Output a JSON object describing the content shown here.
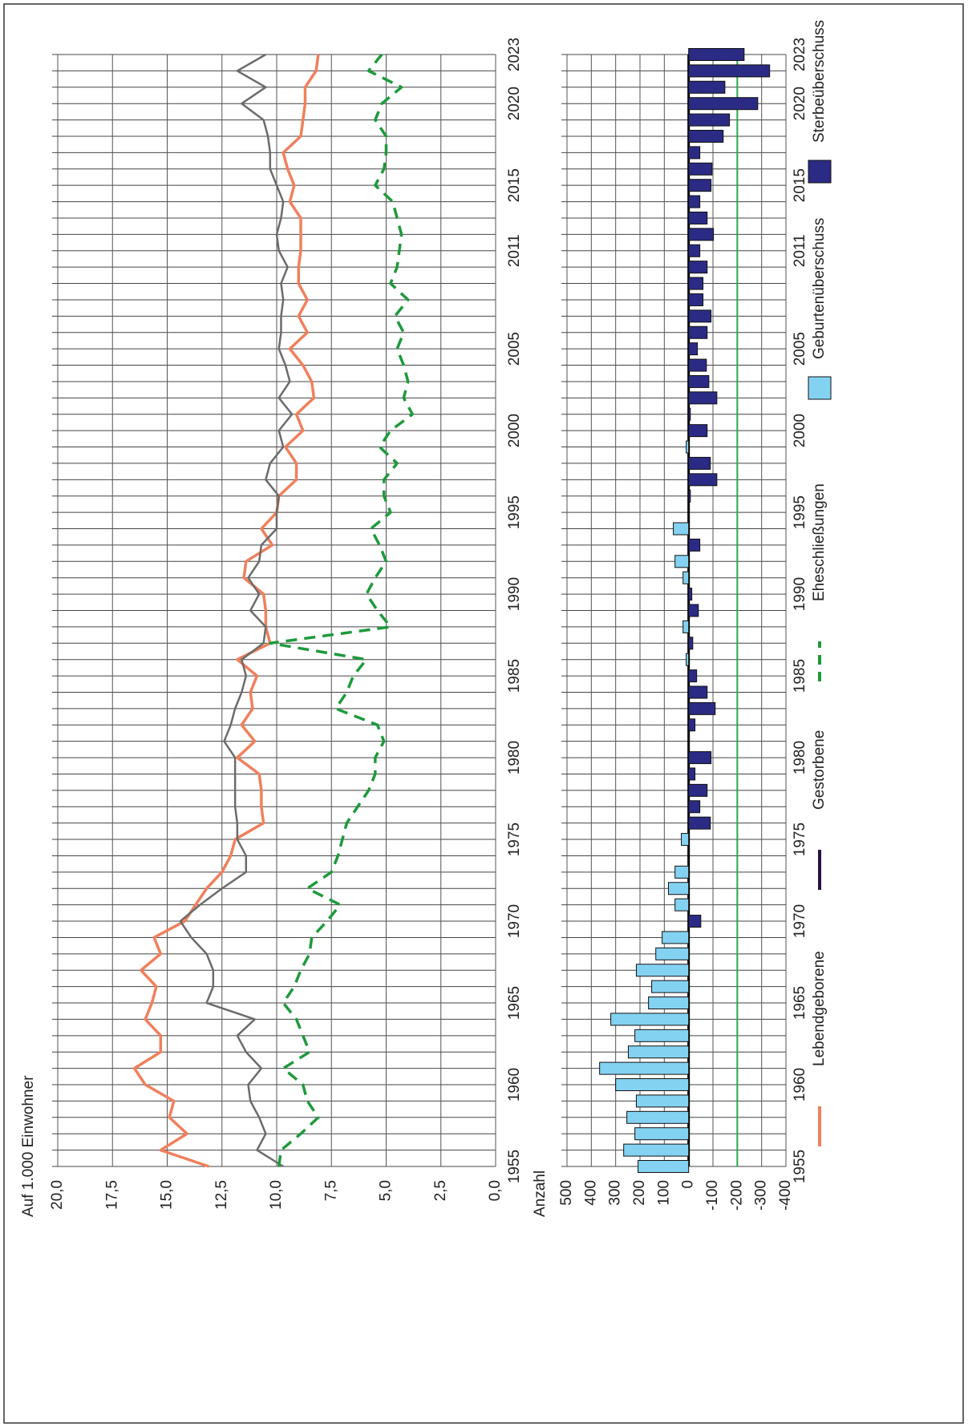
{
  "chart_data": [
    {
      "type": "line",
      "title": "Auf 1.000 Einwohner",
      "grid": true,
      "x": [
        1955,
        1956,
        1957,
        1958,
        1959,
        1960,
        1961,
        1962,
        1963,
        1964,
        1965,
        1966,
        1967,
        1968,
        1969,
        1970,
        1971,
        1972,
        1973,
        1974,
        1975,
        1976,
        1977,
        1978,
        1979,
        1980,
        1981,
        1982,
        1983,
        1984,
        1985,
        1986,
        1987,
        1988,
        1989,
        1990,
        1991,
        1992,
        1993,
        1994,
        1995,
        1996,
        1997,
        1998,
        1999,
        2000,
        2001,
        2002,
        2003,
        2004,
        2005,
        2006,
        2007,
        2008,
        2009,
        2010,
        2011,
        2012,
        2013,
        2014,
        2015,
        2016,
        2017,
        2018,
        2019,
        2020,
        2021,
        2022,
        2023
      ],
      "xlim": [
        1955,
        2023
      ],
      "xticks": [
        1955,
        1960,
        1965,
        1970,
        1975,
        1980,
        1985,
        1990,
        1995,
        2000,
        2005,
        2011,
        2015,
        2020,
        2023
      ],
      "ylim": [
        0,
        20
      ],
      "yticks": [
        {
          "value": 0,
          "label": "0,0"
        },
        {
          "value": 2.5,
          "label": "2,5"
        },
        {
          "value": 5,
          "label": "5,0"
        },
        {
          "value": 7.5,
          "label": "7,5"
        },
        {
          "value": 10,
          "label": "10,0"
        },
        {
          "value": 12.5,
          "label": "12,5"
        },
        {
          "value": 15,
          "label": "15,0"
        },
        {
          "value": 17.5,
          "label": "17,5"
        },
        {
          "value": 20,
          "label": "20,0"
        }
      ],
      "series": [
        {
          "name": "Lebendgeborene",
          "color": "#f0805c",
          "dash": false,
          "values": [
            13.1,
            15.3,
            14.1,
            14.9,
            14.7,
            16.0,
            16.5,
            15.3,
            15.3,
            16.0,
            15.7,
            15.5,
            16.2,
            15.3,
            15.6,
            14.2,
            13.7,
            13.2,
            12.5,
            12.1,
            11.9,
            10.6,
            10.7,
            10.7,
            10.8,
            11.8,
            11.0,
            11.6,
            11.1,
            11.2,
            10.9,
            11.8,
            10.3,
            10.5,
            10.5,
            10.6,
            11.5,
            11.4,
            10.2,
            10.7,
            10.0,
            9.9,
            9.1,
            9.1,
            9.6,
            8.8,
            9.1,
            8.3,
            8.4,
            8.8,
            9.4,
            8.6,
            9.0,
            8.6,
            9.0,
            9.0,
            8.9,
            8.9,
            8.9,
            9.4,
            9.2,
            9.5,
            9.7,
            8.9,
            8.8,
            8.7,
            8.7,
            8.2,
            8.1
          ]
        },
        {
          "name": "Gestorbene",
          "color": "#6b6b6b",
          "legend_color": "#2a1040",
          "dash": false,
          "values": [
            9.7,
            10.9,
            10.5,
            10.8,
            11.2,
            11.3,
            10.7,
            11.4,
            11.8,
            11.0,
            13.2,
            12.9,
            12.9,
            13.2,
            13.9,
            14.4,
            13.5,
            12.5,
            11.4,
            11.4,
            11.8,
            11.8,
            11.9,
            11.9,
            11.9,
            11.9,
            12.4,
            12.1,
            11.9,
            11.6,
            11.4,
            11.6,
            10.6,
            10.5,
            11.2,
            10.8,
            11.3,
            10.8,
            10.7,
            10.0,
            10.0,
            9.9,
            10.5,
            10.3,
            9.7,
            9.9,
            9.3,
            9.9,
            9.4,
            9.6,
            9.9,
            9.8,
            9.8,
            9.7,
            9.8,
            9.5,
            9.9,
            10.0,
            9.8,
            9.7,
            10.0,
            10.3,
            10.3,
            10.4,
            10.6,
            11.6,
            10.5,
            11.8,
            10.5
          ]
        },
        {
          "name": "Eheschließungen",
          "color": "#1e9a3c",
          "dash": true,
          "values": [
            9.9,
            9.8,
            8.9,
            8.1,
            8.6,
            8.8,
            9.7,
            8.5,
            8.8,
            9.1,
            9.7,
            9.2,
            8.9,
            8.5,
            8.4,
            7.7,
            7.1,
            8.6,
            7.5,
            7.2,
            7.0,
            6.8,
            6.3,
            5.8,
            5.5,
            5.5,
            5.1,
            5.4,
            7.3,
            6.8,
            6.5,
            5.9,
            10.3,
            4.8,
            5.4,
            5.9,
            5.5,
            5.0,
            5.3,
            5.7,
            4.8,
            5.1,
            5.1,
            4.5,
            5.3,
            4.8,
            3.8,
            4.2,
            4.0,
            4.2,
            4.5,
            4.2,
            4.6,
            4.0,
            4.8,
            4.5,
            4.4,
            4.3,
            4.5,
            4.7,
            5.5,
            5.1,
            5.0,
            5.0,
            5.5,
            5.2,
            4.3,
            5.8,
            5.2
          ]
        }
      ]
    },
    {
      "type": "bar",
      "ylabel": "Anzahl",
      "grid": true,
      "x": [
        1955,
        1956,
        1957,
        1958,
        1959,
        1960,
        1961,
        1962,
        1963,
        1964,
        1965,
        1966,
        1967,
        1968,
        1969,
        1970,
        1971,
        1972,
        1973,
        1974,
        1975,
        1976,
        1977,
        1978,
        1979,
        1980,
        1981,
        1982,
        1983,
        1984,
        1985,
        1986,
        1987,
        1988,
        1989,
        1990,
        1991,
        1992,
        1993,
        1994,
        1995,
        1996,
        1997,
        1998,
        1999,
        2000,
        2001,
        2002,
        2003,
        2004,
        2005,
        2006,
        2007,
        2008,
        2009,
        2010,
        2011,
        2012,
        2013,
        2014,
        2015,
        2016,
        2017,
        2018,
        2019,
        2020,
        2021,
        2022,
        2023
      ],
      "xlim": [
        1955,
        2023
      ],
      "xticks": [
        1955,
        1960,
        1965,
        1970,
        1975,
        1980,
        1985,
        1990,
        1995,
        2000,
        2005,
        2011,
        2015,
        2020,
        2023
      ],
      "ylim": [
        -400,
        500
      ],
      "yticks": [
        -400,
        -300,
        -200,
        -100,
        0,
        100,
        200,
        300,
        400,
        500
      ],
      "hline": {
        "value": -200,
        "color": "#2aa84a"
      },
      "series": [
        {
          "name": "Geburtenüberschuss",
          "color": "#84d2f2",
          "values": [
            208,
            267,
            221,
            254,
            215,
            300,
            366,
            248,
            221,
            320,
            165,
            152,
            215,
            135,
            109,
            null,
            56,
            83,
            56,
            3,
            30,
            null,
            null,
            null,
            null,
            null,
            null,
            null,
            null,
            null,
            null,
            10,
            null,
            23,
            null,
            null,
            23,
            56,
            null,
            63,
            null,
            null,
            null,
            null,
            10,
            null,
            null,
            null,
            null,
            null,
            null,
            null,
            null,
            null,
            null,
            null,
            null,
            null,
            null,
            null,
            null,
            null,
            null,
            null,
            null,
            null,
            null,
            null,
            null
          ]
        },
        {
          "name": "Sterbeüberschuss",
          "color": "#2b2b85",
          "values": [
            null,
            null,
            null,
            null,
            null,
            null,
            null,
            null,
            null,
            null,
            null,
            null,
            null,
            null,
            null,
            -50,
            null,
            null,
            null,
            null,
            null,
            -89,
            -46,
            -76,
            -26,
            -92,
            -2,
            -26,
            -109,
            -76,
            -33,
            null,
            -17,
            null,
            -40,
            -13,
            null,
            null,
            -46,
            null,
            -2,
            -7,
            -116,
            -89,
            null,
            -76,
            -7,
            -116,
            -83,
            -73,
            -36,
            -76,
            -92,
            -59,
            -59,
            -76,
            -46,
            -102,
            -76,
            -46,
            -92,
            -96,
            -46,
            -142,
            -168,
            -284,
            -149,
            -333,
            -228
          ]
        }
      ]
    }
  ]
}
